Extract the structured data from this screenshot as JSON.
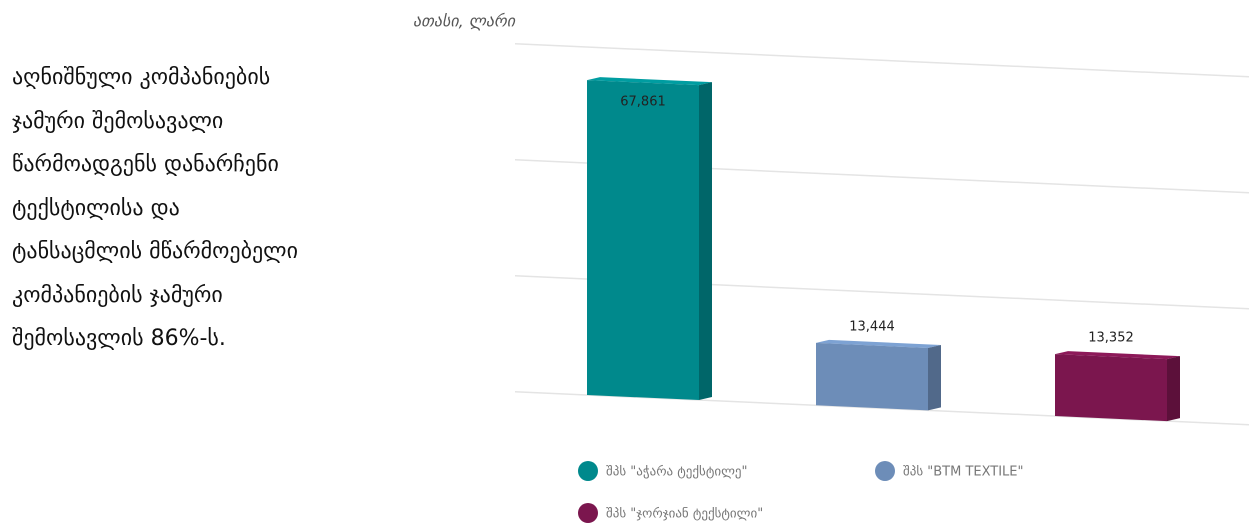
{
  "text": "აღნიშნული კომპანიების ჯამური შემოსავალი წარმოადგენს დანარჩენი ტექსტილისა და ტანსაცმლის მწარმოებელი კომპანიების ჯამური შემოსავლის 86%-ს.",
  "chart_data": {
    "type": "bar3d",
    "y_label": "ათასი, ლარი",
    "categories": [
      "შპს \"აჭარა ტექსტილე\"",
      "შპს \"BTM TEXTILE\"",
      "შპს \"ჯორჯიან ტექსტილი\""
    ],
    "values": [
      67861,
      13444,
      13352
    ],
    "value_labels": [
      "67,861",
      "13,444",
      "13,352"
    ],
    "colors": [
      "#00898c",
      "#6d8db8",
      "#7b164e"
    ],
    "ylim": [
      0,
      75000
    ],
    "yticks": [
      0,
      25000,
      50000,
      75000
    ],
    "grid": true,
    "legend": "bottom"
  }
}
